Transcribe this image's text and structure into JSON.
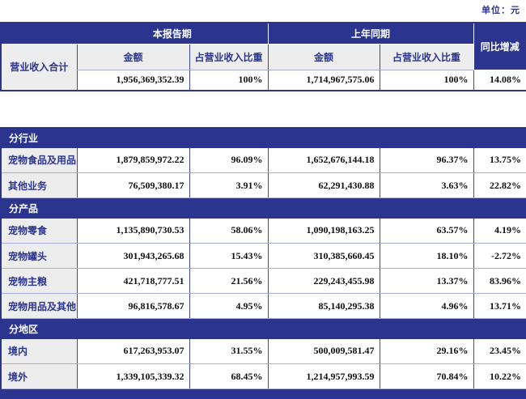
{
  "unit_label": "单位：元",
  "colors": {
    "bar_blue": "#2b358f",
    "label_gray": "#ededee",
    "border_blue": "#3d4a9e",
    "border_light": "#a6aed6",
    "value_text": "#111111"
  },
  "table": {
    "header": {
      "current_period": "本报告期",
      "prior_period": "上年同期",
      "yoy": "同比增减",
      "amount": "金额",
      "pct_of_revenue": "占营业收入比重"
    },
    "total_row": {
      "label": "营业收入合计",
      "cells": [
        "1,956,369,352.39",
        "100%",
        "1,714,967,575.06",
        "100%",
        "14.08%"
      ]
    },
    "sections": [
      {
        "title": "分行业",
        "rows": [
          {
            "label": "宠物食品及用品",
            "cells": [
              "1,879,859,972.22",
              "96.09%",
              "1,652,676,144.18",
              "96.37%",
              "13.75%"
            ]
          },
          {
            "label": "其他业务",
            "cells": [
              "76,509,380.17",
              "3.91%",
              "62,291,430.88",
              "3.63%",
              "22.82%"
            ]
          }
        ]
      },
      {
        "title": "分产品",
        "rows": [
          {
            "label": "宠物零食",
            "cells": [
              "1,135,890,730.53",
              "58.06%",
              "1,090,198,163.25",
              "63.57%",
              "4.19%"
            ]
          },
          {
            "label": "宠物罐头",
            "cells": [
              "301,943,265.68",
              "15.43%",
              "310,385,660.45",
              "18.10%",
              "-2.72%"
            ]
          },
          {
            "label": "宠物主粮",
            "cells": [
              "421,718,777.51",
              "21.56%",
              "229,243,455.98",
              "13.37%",
              "83.96%"
            ]
          },
          {
            "label": "宠物用品及其他",
            "cells": [
              "96,816,578.67",
              "4.95%",
              "85,140,295.38",
              "4.96%",
              "13.71%"
            ]
          }
        ]
      },
      {
        "title": "分地区",
        "rows": [
          {
            "label": "境内",
            "cells": [
              "617,263,953.07",
              "31.55%",
              "500,009,581.47",
              "29.16%",
              "23.45%"
            ]
          },
          {
            "label": "境外",
            "cells": [
              "1,339,105,339.32",
              "68.45%",
              "1,214,957,993.59",
              "70.84%",
              "10.22%"
            ]
          }
        ]
      }
    ]
  }
}
